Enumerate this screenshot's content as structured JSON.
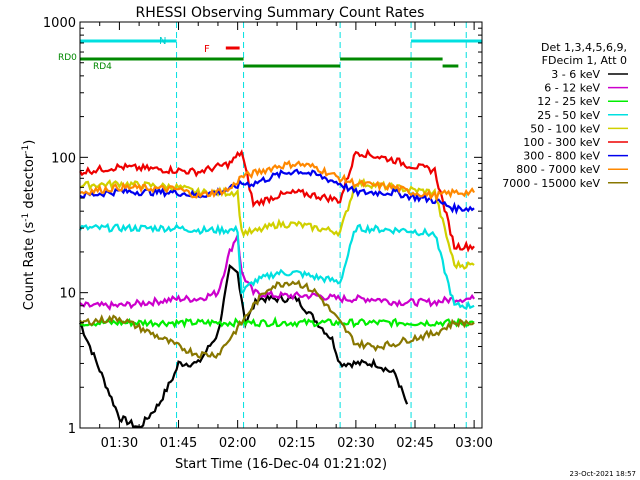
{
  "chart_data": {
    "type": "line",
    "title": "RHESSI Observing Summary Count Rates",
    "xlabel": "Start Time (16-Dec-04 01:21:02)",
    "ylabel_main": "Count Rate (s",
    "ylabel_sup": "-1",
    "ylabel_mid": " detector",
    "ylabel_sup2": "-1",
    "ylabel_end": ")",
    "yscale": "log",
    "ylim": [
      1,
      1000
    ],
    "xlim_min": [
      80,
      182
    ],
    "x_ticks": [
      "01:30",
      "01:45",
      "02:00",
      "02:15",
      "02:30",
      "02:45",
      "03:00"
    ],
    "x_tick_values": [
      90,
      105,
      120,
      135,
      150,
      165,
      180
    ],
    "y_ticks": [
      "1",
      "10",
      "100",
      "1000"
    ],
    "y_tick_values": [
      1,
      10,
      100,
      1000
    ],
    "legend_header": [
      "Det 1,3,4,5,6,9,",
      "FDecim 1, Att 0"
    ],
    "legend_placement": "right",
    "annotations": {
      "N": "N",
      "F": "F",
      "RD0": "RD0",
      "RD4": "RD4"
    },
    "timestamp": "23-Oct-2021 18:57",
    "night_boundaries": [
      80,
      104.5,
      121.5,
      146,
      164,
      178
    ],
    "series": [
      {
        "name": "3 - 6 keV",
        "color": "#000000",
        "x": [
          80,
          90,
          95,
          100,
          104,
          105,
          110,
          115,
          118,
          120,
          122,
          125,
          135,
          144,
          146,
          150,
          155,
          160,
          163
        ],
        "y": [
          6,
          1.2,
          1.0,
          1.5,
          2.5,
          3.0,
          3.0,
          5.0,
          15,
          14,
          6,
          9,
          9,
          4.5,
          3.0,
          3.0,
          3.0,
          2.5,
          1.5
        ]
      },
      {
        "name": "6 - 12 keV",
        "color": "#cc00cc",
        "x": [
          80,
          90,
          105,
          110,
          115,
          118,
          120,
          121,
          124,
          130,
          135,
          140,
          146,
          150,
          155,
          160,
          163,
          170,
          175,
          180
        ],
        "y": [
          8,
          8,
          9,
          9,
          10,
          20,
          27,
          14,
          10,
          9.5,
          9.5,
          9.5,
          9,
          9,
          9,
          8.5,
          8.5,
          8.5,
          9,
          9
        ]
      },
      {
        "name": "12 - 25 keV",
        "color": "#00ee00",
        "x": [
          80,
          90,
          105,
          110,
          121,
          125,
          135,
          146,
          150,
          160,
          163,
          170,
          175,
          180
        ],
        "y": [
          6,
          6,
          6,
          6,
          6,
          6,
          6,
          6,
          6,
          6,
          6,
          6,
          6,
          6
        ]
      },
      {
        "name": "25 - 50 keV",
        "color": "#00e0e0",
        "x": [
          80,
          90,
          105,
          110,
          120,
          121,
          124,
          130,
          135,
          140,
          146,
          150,
          160,
          163,
          170,
          175,
          180
        ],
        "y": [
          30,
          30,
          30,
          29,
          29,
          10,
          12,
          14,
          14,
          13,
          12,
          30,
          29,
          29,
          27,
          8,
          8
        ]
      },
      {
        "name": "50 - 100 keV",
        "color": "#d0d000",
        "x": [
          80,
          90,
          105,
          110,
          120,
          121,
          124,
          130,
          135,
          140,
          146,
          150,
          160,
          163,
          170,
          175,
          180
        ],
        "y": [
          62,
          64,
          60,
          55,
          55,
          28,
          28,
          32,
          32,
          30,
          28,
          65,
          60,
          58,
          55,
          16,
          16
        ]
      },
      {
        "name": "100 - 300 keV",
        "color": "#ee0000",
        "x": [
          80,
          90,
          105,
          110,
          118,
          121,
          124,
          130,
          135,
          140,
          146,
          150,
          160,
          163,
          170,
          175,
          180
        ],
        "y": [
          78,
          85,
          80,
          78,
          90,
          110,
          45,
          52,
          55,
          52,
          48,
          110,
          95,
          88,
          80,
          22,
          22
        ]
      },
      {
        "name": "300 - 800 keV",
        "color": "#0000ee",
        "x": [
          80,
          90,
          105,
          110,
          118,
          121,
          124,
          130,
          135,
          140,
          146,
          150,
          160,
          163,
          170,
          175,
          180
        ],
        "y": [
          52,
          56,
          55,
          52,
          58,
          64,
          64,
          74,
          80,
          74,
          64,
          55,
          55,
          52,
          48,
          42,
          42
        ]
      },
      {
        "name": "800 - 7000 keV",
        "color": "#ff8800",
        "x": [
          80,
          90,
          105,
          110,
          118,
          121,
          124,
          130,
          135,
          140,
          146,
          150,
          160,
          163,
          170,
          175,
          180
        ],
        "y": [
          55,
          60,
          58,
          52,
          58,
          72,
          76,
          86,
          90,
          84,
          70,
          64,
          60,
          56,
          52,
          55,
          55
        ]
      },
      {
        "name": "7000 - 15000 keV",
        "color": "#887700",
        "x": [
          80,
          90,
          105,
          110,
          115,
          121,
          124,
          128,
          133,
          135,
          140,
          146,
          150,
          155,
          160,
          163,
          170,
          175,
          180
        ],
        "y": [
          6,
          6.5,
          4.0,
          3.5,
          3.5,
          6,
          8,
          11,
          12,
          12,
          10,
          6,
          4.2,
          4.0,
          4.2,
          4.5,
          5,
          6,
          6
        ]
      }
    ],
    "status_bars": [
      {
        "name": "N",
        "color": "#00e0e0",
        "segments": [
          [
            80,
            104.5
          ],
          [
            164,
            182
          ]
        ]
      },
      {
        "name": "F",
        "color": "#ee0000",
        "segments": [
          [
            117,
            120.5
          ]
        ]
      },
      {
        "name": "RD0",
        "color": "#008800",
        "segments": [
          [
            80,
            121.5
          ],
          [
            146,
            172
          ]
        ]
      },
      {
        "name": "RD4",
        "color": "#008800",
        "segments": [
          [
            121.5,
            146
          ],
          [
            172,
            176
          ]
        ]
      }
    ]
  }
}
